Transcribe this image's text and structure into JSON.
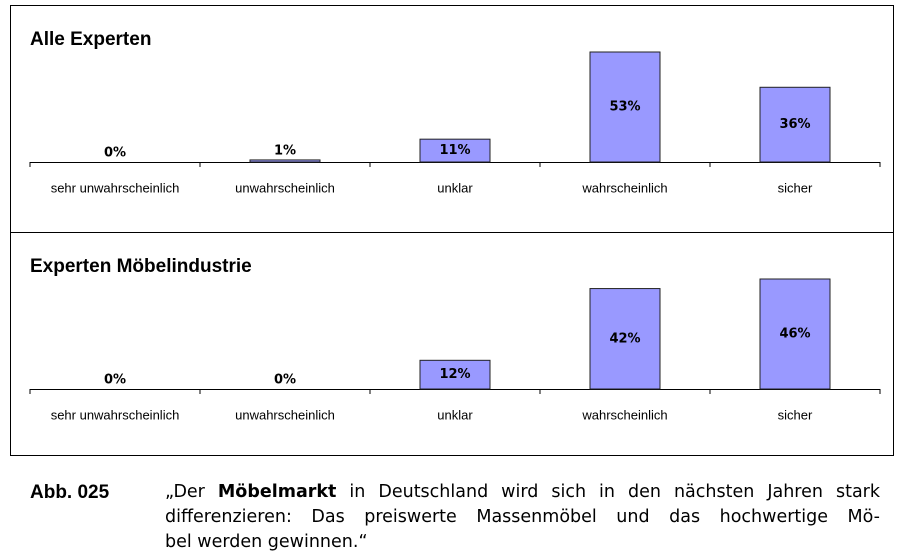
{
  "chart_data": [
    {
      "type": "bar",
      "title": "Alle Experten",
      "categories": [
        "sehr unwahrscheinlich",
        "unwahrscheinlich",
        "unklar",
        "wahrscheinlich",
        "sicher"
      ],
      "values": [
        0,
        1,
        11,
        53,
        36
      ],
      "value_labels": [
        "0%",
        "1%",
        "11%",
        "53%",
        "36%"
      ],
      "color": "#9999ff"
    },
    {
      "type": "bar",
      "title": "Experten Möbelindustrie",
      "categories": [
        "sehr unwahrscheinlich",
        "unwahrscheinlich",
        "unklar",
        "wahrscheinlich",
        "sicher"
      ],
      "values": [
        0,
        0,
        12,
        42,
        46
      ],
      "value_labels": [
        "0%",
        "0%",
        "12%",
        "42%",
        "46%"
      ],
      "color": "#9999ff"
    }
  ],
  "caption": {
    "label": "Abb. 025",
    "line1": [
      "„Der ",
      "Möbelmarkt",
      " in Deutschland wird sich in den nächsten Jahren stark"
    ],
    "line2": "differenzieren: Das preiswerte Massenmöbel und das hochwertige Mö-",
    "line3": "bel werden gewinnen.“"
  }
}
